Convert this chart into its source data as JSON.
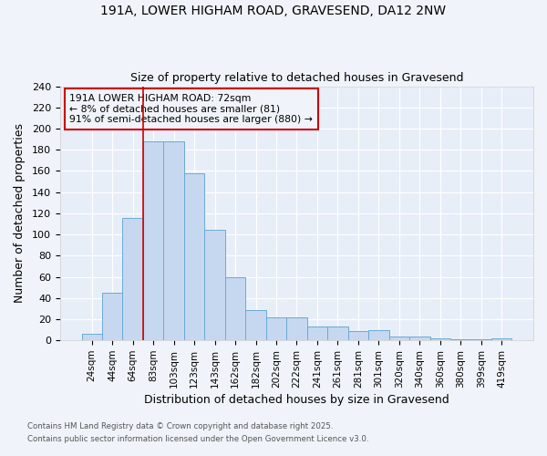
{
  "title_line1": "191A, LOWER HIGHAM ROAD, GRAVESEND, DA12 2NW",
  "title_line2": "Size of property relative to detached houses in Gravesend",
  "xlabel": "Distribution of detached houses by size in Gravesend",
  "ylabel": "Number of detached properties",
  "categories": [
    "24sqm",
    "44sqm",
    "64sqm",
    "83sqm",
    "103sqm",
    "123sqm",
    "143sqm",
    "162sqm",
    "182sqm",
    "202sqm",
    "222sqm",
    "241sqm",
    "261sqm",
    "281sqm",
    "301sqm",
    "320sqm",
    "340sqm",
    "360sqm",
    "380sqm",
    "399sqm",
    "419sqm"
  ],
  "values": [
    6,
    45,
    116,
    188,
    188,
    158,
    104,
    60,
    29,
    22,
    22,
    13,
    13,
    9,
    10,
    4,
    4,
    2,
    1,
    1,
    2
  ],
  "bar_color": "#c5d8f0",
  "bar_edge_color": "#6aaad4",
  "vline_x_index": 2.5,
  "vline_color": "#cc0000",
  "annotation_title": "191A LOWER HIGHAM ROAD: 72sqm",
  "annotation_line1": "← 8% of detached houses are smaller (81)",
  "annotation_line2": "91% of semi-detached houses are larger (880) →",
  "annotation_box_color": "#cc0000",
  "ylim": [
    0,
    240
  ],
  "yticks": [
    0,
    20,
    40,
    60,
    80,
    100,
    120,
    140,
    160,
    180,
    200,
    220,
    240
  ],
  "footnote_line1": "Contains HM Land Registry data © Crown copyright and database right 2025.",
  "footnote_line2": "Contains public sector information licensed under the Open Government Licence v3.0.",
  "bg_color": "#f0f4fa",
  "plot_bg_color": "#e8eef8",
  "grid_color": "#ffffff"
}
